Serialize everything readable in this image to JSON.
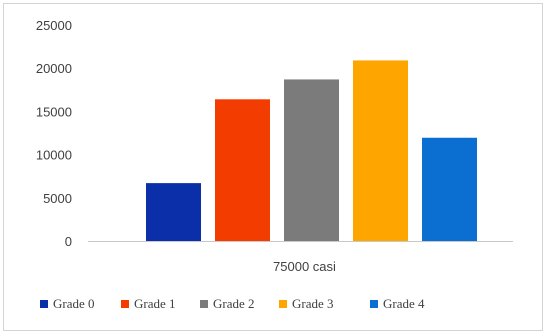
{
  "chart_data": {
    "type": "bar",
    "categories": [
      "75000 casi"
    ],
    "series": [
      {
        "name": "Grade 0",
        "values": [
          6700
        ],
        "color": "#0b2fa8"
      },
      {
        "name": "Grade 1",
        "values": [
          16400
        ],
        "color": "#f23c00"
      },
      {
        "name": "Grade 2",
        "values": [
          18700
        ],
        "color": "#7b7b7b"
      },
      {
        "name": "Grade 3",
        "values": [
          20900
        ],
        "color": "#ffa500"
      },
      {
        "name": "Grade 4",
        "values": [
          11950
        ],
        "color": "#0a6fd1"
      }
    ],
    "ylim": [
      0,
      25000
    ],
    "yticks": [
      "0",
      "5000",
      "10000",
      "15000",
      "20000",
      "25000"
    ],
    "grid": false,
    "legend_position": "bottom"
  }
}
